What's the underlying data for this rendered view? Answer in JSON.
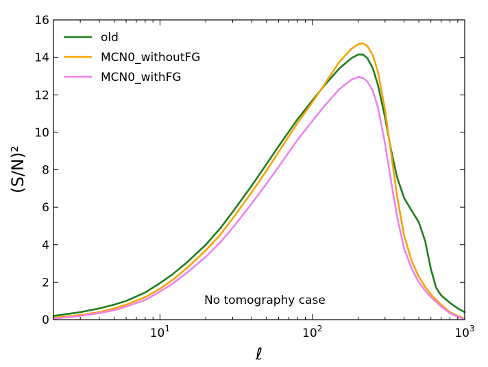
{
  "chart_data": {
    "type": "line",
    "title": "",
    "xlabel": "ℓ",
    "ylabel": "(S/N)²",
    "xscale": "log",
    "xlim": [
      2,
      1000
    ],
    "ylim": [
      0,
      16
    ],
    "grid": false,
    "legend": "top-left",
    "x_ticks": [
      {
        "value": 10,
        "base": "10",
        "exp": "1"
      },
      {
        "value": 100,
        "base": "10",
        "exp": "2"
      },
      {
        "value": 1000,
        "base": "10",
        "exp": "3"
      }
    ],
    "y_ticks": [
      0,
      2,
      4,
      6,
      8,
      10,
      12,
      14,
      16
    ],
    "annotation": "No tomography case",
    "series": [
      {
        "name": "old",
        "color": "#1e7d1e",
        "x": [
          2,
          3,
          4,
          5,
          6,
          8,
          10,
          12,
          15,
          20,
          25,
          30,
          40,
          50,
          60,
          80,
          100,
          120,
          150,
          180,
          200,
          215,
          230,
          250,
          270,
          300,
          330,
          360,
          400,
          450,
          500,
          550,
          600,
          650,
          700,
          800,
          900,
          1000
        ],
        "values": [
          0.2,
          0.4,
          0.6,
          0.8,
          1.0,
          1.45,
          1.95,
          2.4,
          3.05,
          4.0,
          4.9,
          5.75,
          7.15,
          8.3,
          9.25,
          10.7,
          11.7,
          12.5,
          13.4,
          13.95,
          14.15,
          14.15,
          13.95,
          13.4,
          12.5,
          10.8,
          9.0,
          7.6,
          6.5,
          5.8,
          5.2,
          4.2,
          2.7,
          1.7,
          1.3,
          0.9,
          0.6,
          0.4
        ]
      },
      {
        "name": "MCN0_withoutFG",
        "color": "#f5a300",
        "x": [
          2,
          3,
          4,
          5,
          6,
          8,
          10,
          12,
          15,
          20,
          25,
          30,
          40,
          50,
          60,
          80,
          100,
          120,
          150,
          180,
          200,
          215,
          230,
          250,
          270,
          300,
          330,
          360,
          400,
          450,
          500,
          550,
          600,
          650,
          700,
          800,
          900,
          1000
        ],
        "values": [
          0.1,
          0.25,
          0.4,
          0.6,
          0.8,
          1.2,
          1.65,
          2.1,
          2.75,
          3.7,
          4.55,
          5.4,
          6.8,
          7.95,
          8.95,
          10.5,
          11.6,
          12.55,
          13.75,
          14.45,
          14.7,
          14.75,
          14.6,
          14.1,
          13.2,
          11.2,
          8.8,
          6.6,
          4.5,
          3.1,
          2.3,
          1.75,
          1.35,
          1.05,
          0.8,
          0.4,
          0.2,
          0.05
        ]
      },
      {
        "name": "MCN0_withFG",
        "color": "#ee82ee",
        "x": [
          2,
          3,
          4,
          5,
          6,
          8,
          10,
          12,
          15,
          20,
          25,
          30,
          40,
          50,
          60,
          80,
          100,
          120,
          150,
          180,
          200,
          215,
          230,
          250,
          270,
          300,
          330,
          360,
          400,
          450,
          500,
          550,
          600,
          650,
          700,
          800,
          900,
          1000
        ],
        "values": [
          0.05,
          0.2,
          0.35,
          0.5,
          0.7,
          1.05,
          1.5,
          1.9,
          2.5,
          3.35,
          4.15,
          4.9,
          6.2,
          7.25,
          8.15,
          9.6,
          10.6,
          11.4,
          12.3,
          12.8,
          12.95,
          12.9,
          12.7,
          12.2,
          11.3,
          9.4,
          7.3,
          5.5,
          3.8,
          2.7,
          2.0,
          1.55,
          1.2,
          0.95,
          0.7,
          0.35,
          0.15,
          0.03
        ]
      }
    ]
  }
}
